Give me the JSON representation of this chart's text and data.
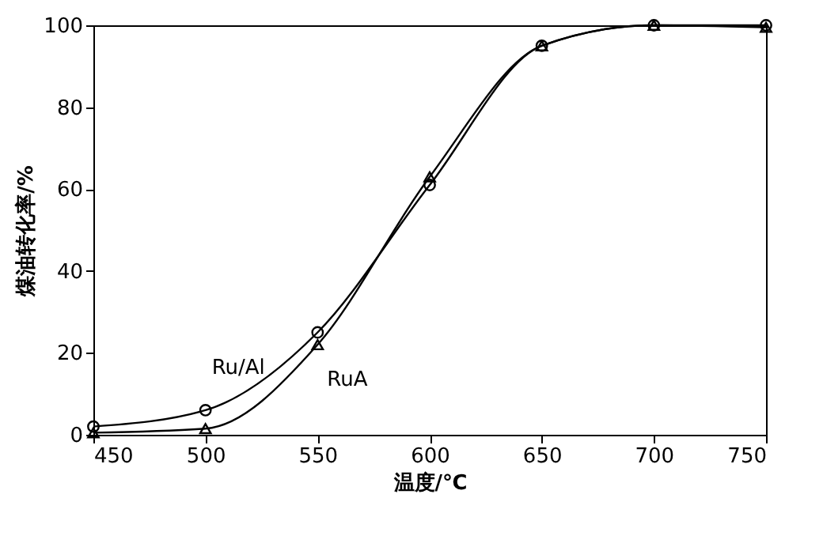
{
  "chart_data": {
    "type": "line",
    "xlabel": "温度/℃",
    "ylabel": "煤油转化率/%",
    "x": [
      450,
      500,
      550,
      600,
      650,
      700,
      750
    ],
    "series": [
      {
        "name": "Ru/Al",
        "color": "#000000",
        "marker": "circle",
        "values": [
          2,
          6,
          25,
          61,
          95,
          100,
          100
        ]
      },
      {
        "name": "RuA",
        "color": "#000000",
        "marker": "triangle",
        "values": [
          0.5,
          1.5,
          22,
          63,
          95,
          100,
          99.5
        ]
      }
    ],
    "xlim": [
      450,
      750
    ],
    "xticks": [
      450,
      500,
      550,
      600,
      650,
      700,
      750
    ],
    "ylim": [
      0,
      100
    ],
    "yticks": [
      0,
      20,
      40,
      60,
      80,
      100
    ],
    "line_style": "solid"
  }
}
